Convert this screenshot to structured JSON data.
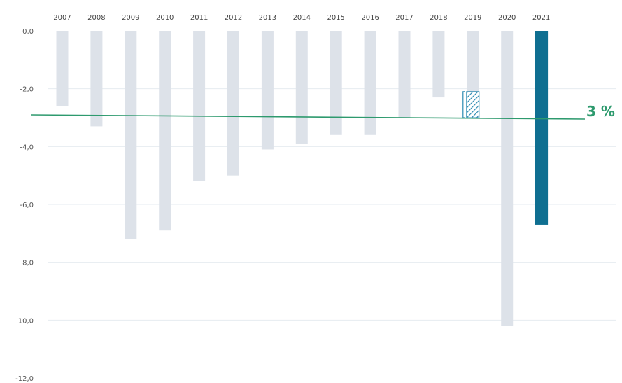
{
  "chart_data": {
    "type": "bar",
    "categories": [
      "2007",
      "2008",
      "2009",
      "2010",
      "2011",
      "2012",
      "2013",
      "2014",
      "2015",
      "2016",
      "2017",
      "2018",
      "2019",
      "2020",
      "2021"
    ],
    "values": [
      -2.6,
      -3.3,
      -7.2,
      -6.9,
      -5.2,
      -5.0,
      -4.1,
      -3.9,
      -3.6,
      -3.6,
      -3.0,
      -2.3,
      -3.0,
      -10.2,
      -6.7
    ],
    "highlight_category": "2021",
    "hatched_segment": {
      "category": "2019",
      "from": -2.1,
      "to": -3.0
    },
    "ylim": [
      -12.0,
      0.0
    ],
    "yticks": [
      {
        "value": 0,
        "label": "0,0"
      },
      {
        "value": -2,
        "label": "-2,0"
      },
      {
        "value": -4,
        "label": "-4,0"
      },
      {
        "value": -6,
        "label": "-6,0"
      },
      {
        "value": -8,
        "label": "-8,0"
      },
      {
        "value": -10,
        "label": "-10,0"
      },
      {
        "value": -12,
        "label": "-12,0"
      }
    ],
    "reference_line": {
      "value": -3.0,
      "label": "3 %"
    },
    "grid": true,
    "title": "",
    "xlabel": "",
    "ylabel": "",
    "colors": {
      "bar": "#dde2e9",
      "highlight": "#0f6f91",
      "hatch": "#2a8ab0",
      "reference": "#2e9a6e",
      "grid": "#e6ebf0"
    }
  }
}
